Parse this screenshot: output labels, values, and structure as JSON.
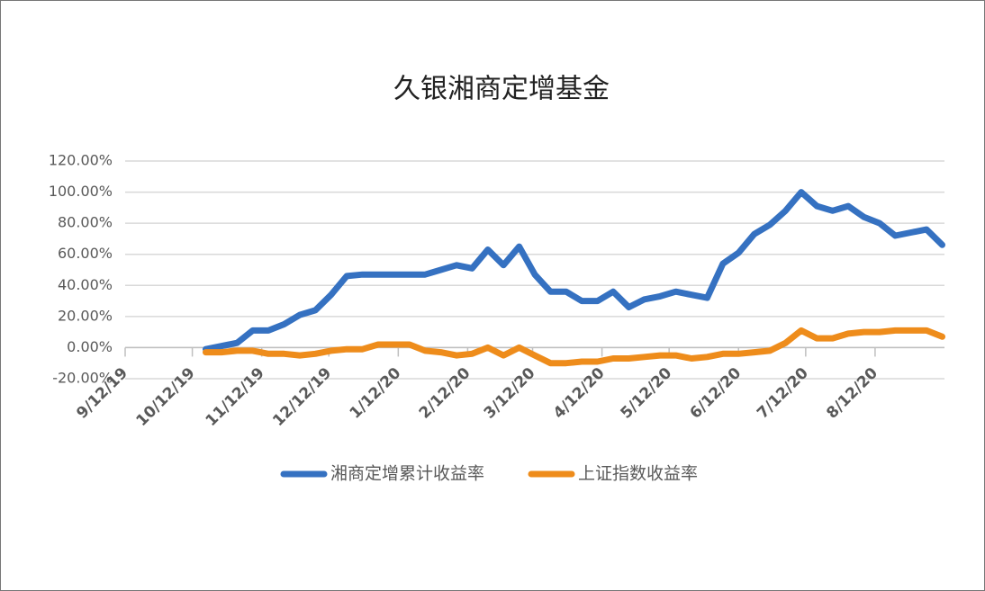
{
  "chart_data": {
    "type": "line",
    "title": "久银湘商定增基金",
    "x": [
      "2019-10-18",
      "2019-10-25",
      "2019-11-01",
      "2019-11-08",
      "2019-11-15",
      "2019-11-22",
      "2019-11-29",
      "2019-12-06",
      "2019-12-13",
      "2019-12-20",
      "2019-12-27",
      "2020-01-03",
      "2020-01-10",
      "2020-01-17",
      "2020-01-24",
      "2020-01-31",
      "2020-02-07",
      "2020-02-14",
      "2020-02-21",
      "2020-02-28",
      "2020-03-06",
      "2020-03-13",
      "2020-03-20",
      "2020-03-27",
      "2020-04-03",
      "2020-04-10",
      "2020-04-17",
      "2020-04-24",
      "2020-05-01",
      "2020-05-08",
      "2020-05-15",
      "2020-05-22",
      "2020-05-29",
      "2020-06-05",
      "2020-06-12",
      "2020-06-19",
      "2020-06-26",
      "2020-07-03",
      "2020-07-10",
      "2020-07-17",
      "2020-07-24",
      "2020-07-31",
      "2020-08-07",
      "2020-08-14",
      "2020-08-21",
      "2020-08-28",
      "2020-09-04",
      "2020-09-11"
    ],
    "series": [
      {
        "name": "湘商定增累计收益率",
        "color": "#3571c1",
        "values": [
          -1,
          1,
          3,
          11,
          11,
          15,
          21,
          24,
          34,
          46,
          47,
          47,
          47,
          47,
          47,
          50,
          53,
          51,
          63,
          53,
          65,
          47,
          36,
          36,
          30,
          30,
          36,
          26,
          31,
          33,
          36,
          34,
          32,
          54,
          61,
          73,
          79,
          88,
          100,
          91,
          88,
          91,
          84,
          80,
          72,
          74,
          76,
          66
        ]
      },
      {
        "name": "上证指数收益率",
        "color": "#ee8c1b",
        "values": [
          -3,
          -3,
          -2,
          -2,
          -4,
          -4,
          -5,
          -4,
          -2,
          -1,
          -1,
          2,
          2,
          2,
          -2,
          -3,
          -5,
          -4,
          0,
          -5,
          0,
          -5,
          -10,
          -10,
          -9,
          -9,
          -7,
          -7,
          -6,
          -5,
          -5,
          -7,
          -6,
          -4,
          -4,
          -3,
          -2,
          3,
          11,
          6,
          6,
          9,
          10,
          10,
          11,
          11,
          11,
          7
        ]
      }
    ],
    "xlim": [
      "2019-09-12",
      "2020-09-12"
    ],
    "xticks": [
      {
        "value": "2019-09-12",
        "label": "9/12/19"
      },
      {
        "value": "2019-10-12",
        "label": "10/12/19"
      },
      {
        "value": "2019-11-12",
        "label": "11/12/19"
      },
      {
        "value": "2019-12-12",
        "label": "12/12/19"
      },
      {
        "value": "2020-01-12",
        "label": "1/12/20"
      },
      {
        "value": "2020-02-12",
        "label": "2/12/20"
      },
      {
        "value": "2020-03-12",
        "label": "3/12/20"
      },
      {
        "value": "2020-04-12",
        "label": "4/12/20"
      },
      {
        "value": "2020-05-12",
        "label": "5/12/20"
      },
      {
        "value": "2020-06-12",
        "label": "6/12/20"
      },
      {
        "value": "2020-07-12",
        "label": "7/12/20"
      },
      {
        "value": "2020-08-12",
        "label": "8/12/20"
      }
    ],
    "ylim": [
      -20,
      120
    ],
    "yticks": [
      {
        "value": -20,
        "label": "-20.00%"
      },
      {
        "value": 0,
        "label": "0.00%"
      },
      {
        "value": 20,
        "label": "20.00%"
      },
      {
        "value": 40,
        "label": "40.00%"
      },
      {
        "value": 60,
        "label": "60.00%"
      },
      {
        "value": 80,
        "label": "80.00%"
      },
      {
        "value": 100,
        "label": "100.00%"
      },
      {
        "value": 120,
        "label": "120.00%"
      }
    ],
    "grid": true,
    "legend": "bottom"
  }
}
